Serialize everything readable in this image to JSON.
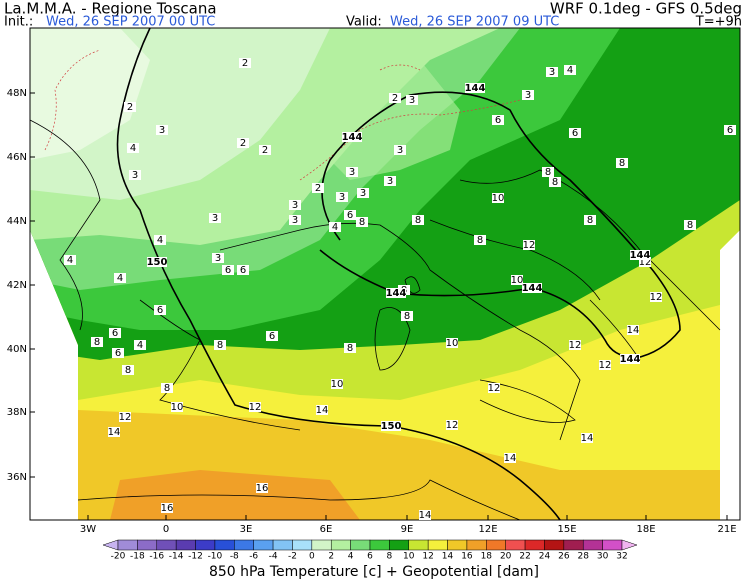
{
  "header": {
    "title_left": "La.M.M.A. - Regione Toscana",
    "title_right": "WRF 0.1deg - GFS 0.5deg",
    "init_label": "Init.:",
    "init_time": "Wed, 26 SEP 2007  00 UTC",
    "valid_label": "Valid:",
    "valid_time": "Wed, 26 SEP 2007  09 UTC",
    "lead_time": "T=+9h"
  },
  "map": {
    "lat_labels": [
      "48N",
      "46N",
      "44N",
      "42N",
      "40N",
      "38N",
      "36N"
    ],
    "lon_labels": [
      "3W",
      "0",
      "3E",
      "6E",
      "9E",
      "12E",
      "15E",
      "18E",
      "21E"
    ],
    "temperature_labels": [
      2,
      2,
      3,
      2,
      2,
      4,
      3,
      3,
      4,
      4,
      4,
      3,
      6,
      6,
      6,
      6,
      8,
      4,
      6,
      8,
      8,
      6,
      8,
      8,
      10,
      12,
      14,
      12,
      14,
      10,
      10,
      12,
      12,
      14,
      16,
      16,
      14,
      14,
      12,
      12,
      14,
      12,
      12,
      12,
      10,
      10,
      8,
      8,
      8,
      8,
      6,
      4,
      8,
      3,
      3,
      3,
      3,
      3,
      3,
      3,
      4,
      3,
      3,
      6,
      6,
      8,
      6,
      8,
      8,
      8,
      8,
      2,
      3,
      2
    ],
    "geopotential_labels": [
      144,
      144,
      150,
      144,
      144,
      150,
      144,
      144
    ]
  },
  "colorbar": {
    "levels": [
      -20,
      -18,
      -16,
      -14,
      -12,
      -10,
      -8,
      -6,
      -4,
      -2,
      0,
      2,
      4,
      6,
      8,
      10,
      12,
      14,
      16,
      18,
      20,
      22,
      24,
      26,
      28,
      30,
      32
    ],
    "colors": [
      "#c8b4f0",
      "#a08cd8",
      "#8c6cc8",
      "#7050b8",
      "#5a3cb0",
      "#3c3cc8",
      "#2850d8",
      "#3c78e6",
      "#5aa0f0",
      "#82c3f5",
      "#a8e0fa",
      "#d2f5c8",
      "#b4f0a0",
      "#78dc78",
      "#3cc83c",
      "#14a014",
      "#c8e632",
      "#f5f03c",
      "#f0c828",
      "#f0a028",
      "#f07828",
      "#f05050",
      "#dc2828",
      "#b41414",
      "#a01e50",
      "#b43296",
      "#d250c8",
      "#f0b4f0"
    ]
  },
  "footer": {
    "caption": "850 hPa Temperature [c] + Geopotential [dam]"
  }
}
